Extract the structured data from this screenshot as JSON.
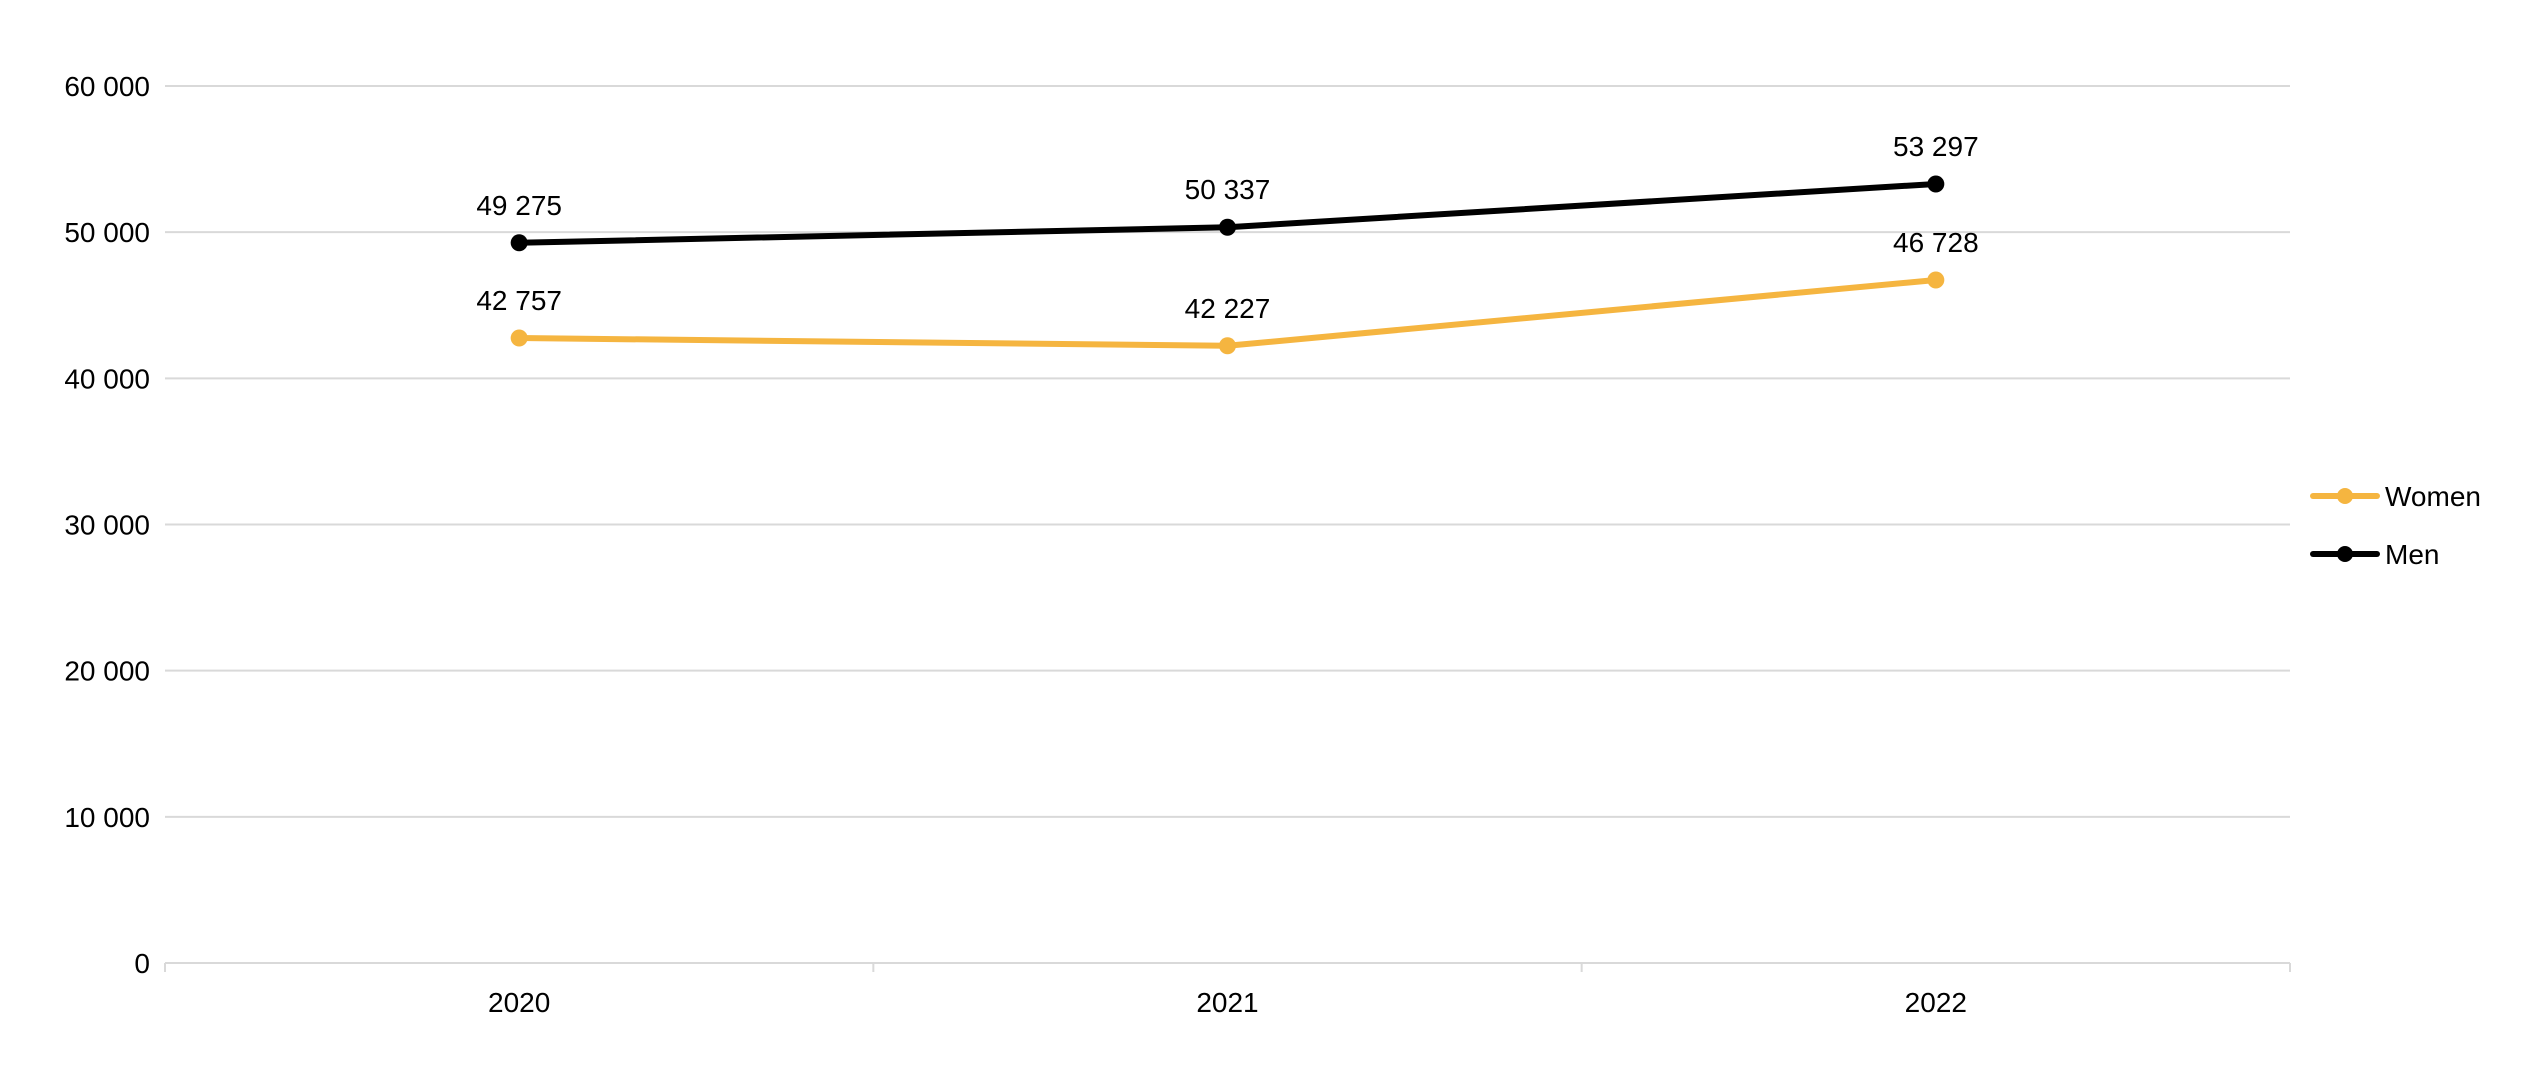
{
  "chart_data": {
    "type": "line",
    "categories": [
      "2020",
      "2021",
      "2022"
    ],
    "series": [
      {
        "name": "Women",
        "color": "#F5B540",
        "values": [
          42757,
          42227,
          46728
        ],
        "data_labels": [
          "42 757",
          "42 227",
          "46 728"
        ]
      },
      {
        "name": "Men",
        "color": "#000000",
        "values": [
          49275,
          50337,
          53297
        ],
        "data_labels": [
          "49 275",
          "50 337",
          "53 297"
        ]
      }
    ],
    "title": "",
    "xlabel": "",
    "ylabel": "",
    "y_axis": {
      "min": 0,
      "max": 60000,
      "step": 10000,
      "tick_labels": [
        "0",
        "10 000",
        "20 000",
        "30 000",
        "40 000",
        "50 000",
        "60 000"
      ]
    },
    "x_axis": {
      "tick_labels": [
        "2020",
        "2021",
        "2022"
      ]
    },
    "legend": {
      "position": "right",
      "entries": [
        "Women",
        "Men"
      ]
    },
    "grid": true,
    "colors": {
      "gridline": "#D9D9D9",
      "axis_line": "#D9D9D9",
      "text": "#000000",
      "background": "#FFFFFF"
    }
  }
}
